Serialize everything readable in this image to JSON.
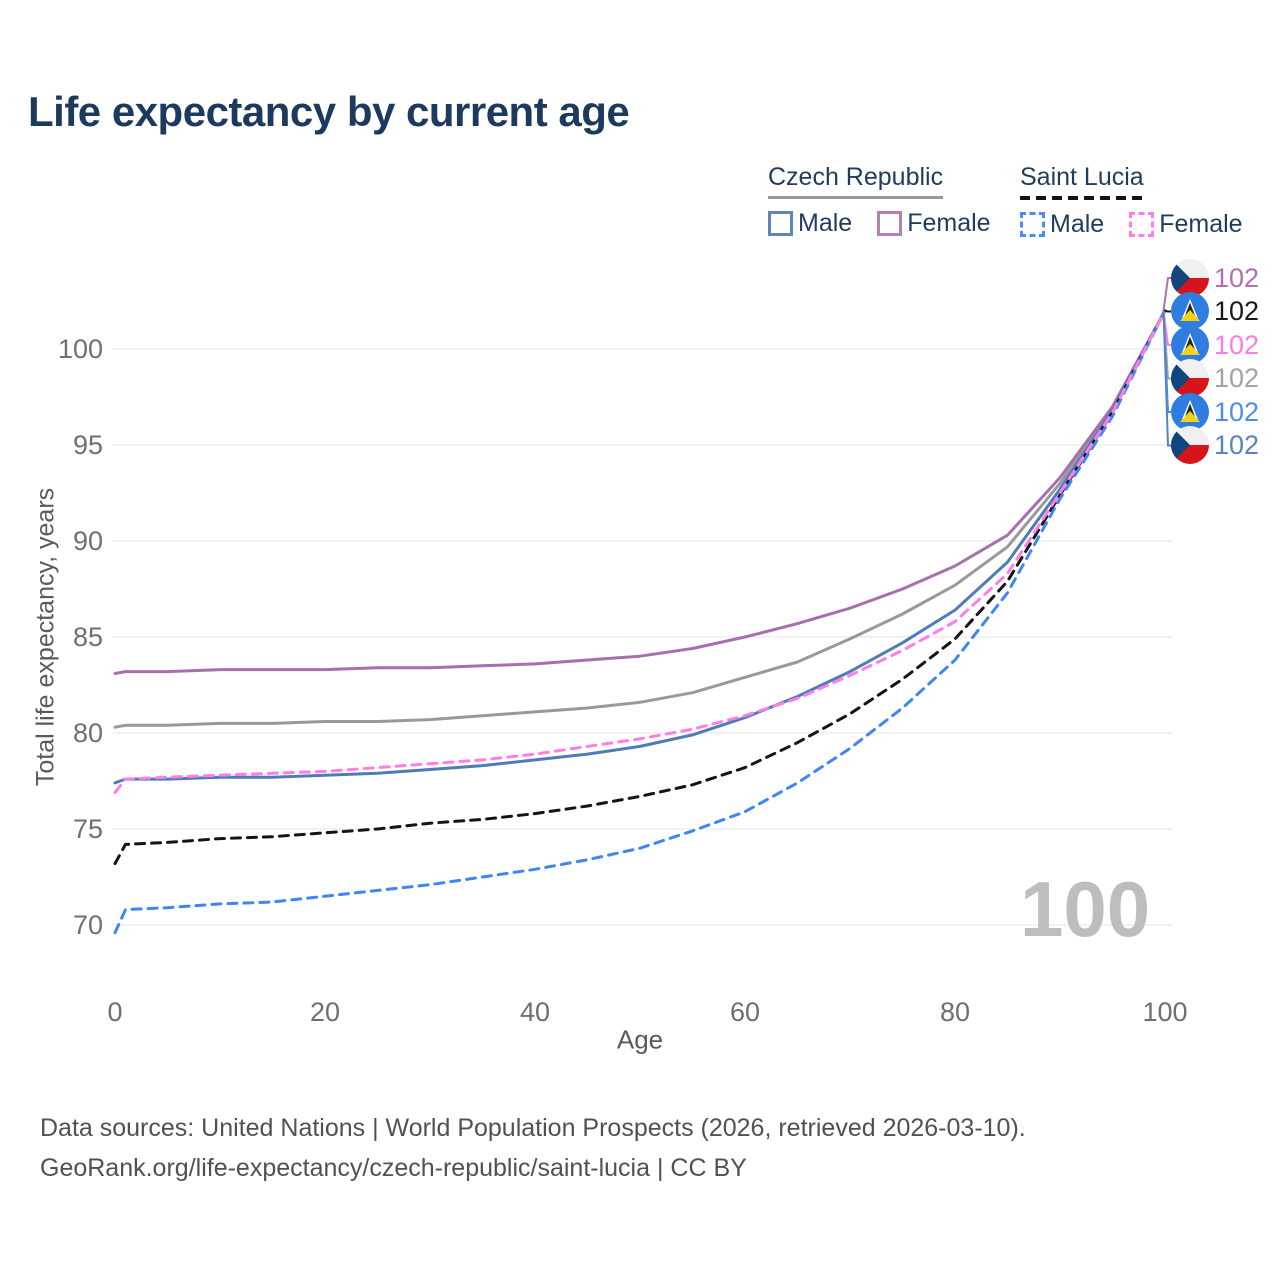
{
  "title": "Life expectancy by current age",
  "legend": {
    "groups": [
      {
        "label": "Czech Republic",
        "line_style": "solid",
        "underline_color": "#999999",
        "items": [
          {
            "label": "Male",
            "color": "#5c86ba"
          },
          {
            "label": "Female",
            "color": "#b77eb5"
          }
        ]
      },
      {
        "label": "Saint Lucia",
        "line_style": "dashed",
        "underline_color": "#141414",
        "items": [
          {
            "label": "Male",
            "color": "#4f8cf2"
          },
          {
            "label": "Female",
            "color": "#ff7de9"
          }
        ]
      }
    ]
  },
  "chart_data": {
    "type": "line",
    "title": "Life expectancy by current age",
    "xlabel": "Age",
    "ylabel": "Total life expectancy, years",
    "xlim": [
      0,
      100
    ],
    "ylim": [
      69.5,
      103
    ],
    "x_ticks": [
      0,
      20,
      40,
      60,
      80,
      100
    ],
    "y_ticks": [
      70,
      75,
      80,
      85,
      90,
      95,
      100
    ],
    "grid": "horizontal",
    "legend_position": "top-right",
    "x": [
      0,
      1,
      5,
      10,
      15,
      20,
      25,
      30,
      35,
      40,
      45,
      50,
      55,
      60,
      65,
      70,
      75,
      80,
      85,
      90,
      95,
      100
    ],
    "series": [
      {
        "name": "Czech Republic (both sexes)",
        "color": "#999999",
        "dash": "solid",
        "values": [
          80.3,
          80.4,
          80.4,
          80.5,
          80.5,
          80.6,
          80.6,
          80.7,
          80.9,
          81.1,
          81.3,
          81.6,
          82.1,
          82.9,
          83.7,
          84.9,
          86.2,
          87.7,
          89.7,
          93.0,
          96.9,
          102
        ]
      },
      {
        "name": "Czech Republic Female",
        "color": "#a76fae",
        "dash": "solid",
        "values": [
          83.1,
          83.2,
          83.2,
          83.3,
          83.3,
          83.3,
          83.4,
          83.4,
          83.5,
          83.6,
          83.8,
          84.0,
          84.4,
          85.0,
          85.7,
          86.5,
          87.5,
          88.7,
          90.3,
          93.3,
          97.0,
          102
        ]
      },
      {
        "name": "Czech Republic Male",
        "color": "#4f7cb8",
        "dash": "solid",
        "values": [
          77.4,
          77.6,
          77.6,
          77.7,
          77.7,
          77.8,
          77.9,
          78.1,
          78.3,
          78.6,
          78.9,
          79.3,
          79.9,
          80.8,
          81.9,
          83.2,
          84.7,
          86.4,
          88.9,
          92.7,
          96.8,
          102
        ]
      },
      {
        "name": "Saint Lucia (both sexes)",
        "color": "#141414",
        "dash": "dashed",
        "values": [
          73.2,
          74.2,
          74.3,
          74.5,
          74.6,
          74.8,
          75.0,
          75.3,
          75.5,
          75.8,
          76.2,
          76.7,
          77.3,
          78.2,
          79.5,
          81.0,
          82.8,
          84.9,
          87.9,
          92.4,
          96.7,
          102
        ]
      },
      {
        "name": "Saint Lucia Male",
        "color": "#3f86f0",
        "dash": "dashed",
        "values": [
          69.6,
          70.8,
          70.9,
          71.1,
          71.2,
          71.5,
          71.8,
          72.1,
          72.5,
          72.9,
          73.4,
          74.0,
          74.9,
          75.9,
          77.4,
          79.2,
          81.3,
          83.8,
          87.3,
          92.2,
          96.5,
          102
        ]
      },
      {
        "name": "Saint Lucia Female",
        "color": "#ff7de9",
        "dash": "dashed",
        "values": [
          76.9,
          77.6,
          77.7,
          77.8,
          77.9,
          78.0,
          78.2,
          78.4,
          78.6,
          78.9,
          79.3,
          79.7,
          80.2,
          80.9,
          81.8,
          83.0,
          84.3,
          85.8,
          88.3,
          92.5,
          96.7,
          102
        ]
      }
    ],
    "end_value_labels": "102"
  },
  "right_labels": [
    {
      "value": "102",
      "color": "#b06fae",
      "flag": "cz",
      "series": "Czech Republic Female"
    },
    {
      "value": "102",
      "color": "#1a1a1a",
      "flag": "lc",
      "series": "Saint Lucia (both sexes)"
    },
    {
      "value": "102",
      "color": "#ff7ce8",
      "flag": "lc",
      "series": "Saint Lucia Female"
    },
    {
      "value": "102",
      "color": "#a3a3a3",
      "flag": "cz",
      "series": "Czech Republic (both sexes)"
    },
    {
      "value": "102",
      "color": "#4d8bf0",
      "flag": "lc",
      "series": "Saint Lucia Male"
    },
    {
      "value": "102",
      "color": "#5585c0",
      "flag": "cz",
      "series": "Czech Republic Male"
    }
  ],
  "watermark": "100",
  "footer": {
    "line1": "Data sources: United Nations | World Population Prospects (2026, retrieved 2026-03-10).",
    "line2": "GeoRank.org/life-expectancy/czech-republic/saint-lucia | CC BY"
  }
}
